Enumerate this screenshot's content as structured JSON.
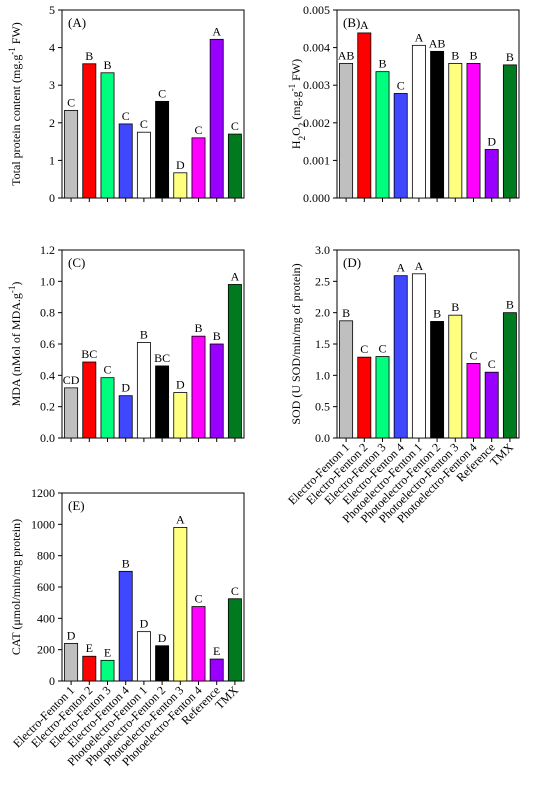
{
  "categories": [
    "Electro-Fenton 1",
    "Electro-Fenton 2",
    "Electro-Fenton 3",
    "Electro-Fenton 4",
    "Photoelectro-Fenton 1",
    "Photoelectro-Fenton 2",
    "Photoelectro-Fenton 3",
    "Photoelectro-Fenton 4",
    "Reference",
    "TMX"
  ],
  "colors": [
    "#bfbfbf",
    "#ff0000",
    "#00ff7f",
    "#3f48ff",
    "#ffffff",
    "#000000",
    "#ffff80",
    "#ff00ff",
    "#9900ff",
    "#007a1f"
  ],
  "chart_data": [
    {
      "type": "bar",
      "panel": "(A)",
      "ylabel_parts": [
        "Total protein content  (mg.g",
        "-1",
        " FW)"
      ],
      "ylim": [
        0,
        5
      ],
      "yticks": [
        "0",
        "1",
        "2",
        "3",
        "4",
        "5"
      ],
      "values": [
        2.33,
        3.57,
        3.33,
        1.97,
        1.75,
        2.57,
        0.67,
        1.6,
        4.22,
        1.7
      ],
      "letters": [
        "C",
        "B",
        "B",
        "C",
        "C",
        "C",
        "D",
        "C",
        "A",
        "C"
      ]
    },
    {
      "type": "bar",
      "panel": "(B)",
      "ylabel_parts": [
        "H",
        "2",
        "O",
        "2",
        " (mg.g",
        "-1",
        " FW)"
      ],
      "ylim": [
        0,
        0.005
      ],
      "yticks": [
        "0.000",
        "0.001",
        "0.002",
        "0.003",
        "0.004",
        "0.005"
      ],
      "values": [
        0.00358,
        0.00439,
        0.00336,
        0.00278,
        0.00406,
        0.0039,
        0.00358,
        0.00358,
        0.00129,
        0.00354
      ],
      "letters": [
        "AB",
        "A",
        "B",
        "C",
        "A",
        "AB",
        "B",
        "B",
        "D",
        "B"
      ]
    },
    {
      "type": "bar",
      "panel": "(C)",
      "ylabel_parts": [
        "MDA (nMol of  MDA.g",
        "-1",
        ")"
      ],
      "ylim": [
        0,
        1.2
      ],
      "yticks": [
        "0.0",
        "0.2",
        "0.4",
        "0.6",
        "0.8",
        "1.0",
        "1.2"
      ],
      "values": [
        0.32,
        0.485,
        0.385,
        0.27,
        0.61,
        0.46,
        0.29,
        0.65,
        0.6,
        0.98
      ],
      "letters": [
        "CD",
        "BC",
        "C",
        "D",
        "B",
        "BC",
        "D",
        "B",
        "B",
        "A"
      ]
    },
    {
      "type": "bar",
      "panel": "(D)",
      "ylabel_parts": [
        "SOD (U SOD/min/mg of protein)"
      ],
      "ylim": [
        0,
        3.0
      ],
      "yticks": [
        "0.0",
        "0.5",
        "1.0",
        "1.5",
        "2.0",
        "2.5",
        "3.0"
      ],
      "values": [
        1.87,
        1.29,
        1.3,
        2.59,
        2.62,
        1.86,
        1.96,
        1.19,
        1.05,
        2.0
      ],
      "letters": [
        "B",
        "C",
        "C",
        "A",
        "A",
        "B",
        "B",
        "C",
        "C",
        "B"
      ]
    },
    {
      "type": "bar",
      "panel": "(E)",
      "ylabel_parts": [
        "CAT (μmol/min/mg protein)"
      ],
      "ylim": [
        0,
        1200
      ],
      "yticks": [
        "0",
        "200",
        "400",
        "600",
        "800",
        "1000",
        "1200"
      ],
      "values": [
        240,
        158,
        132,
        700,
        315,
        225,
        980,
        475,
        140,
        525
      ],
      "letters": [
        "D",
        "E",
        "E",
        "B",
        "D",
        "D",
        "A",
        "C",
        "E",
        "C"
      ]
    }
  ]
}
